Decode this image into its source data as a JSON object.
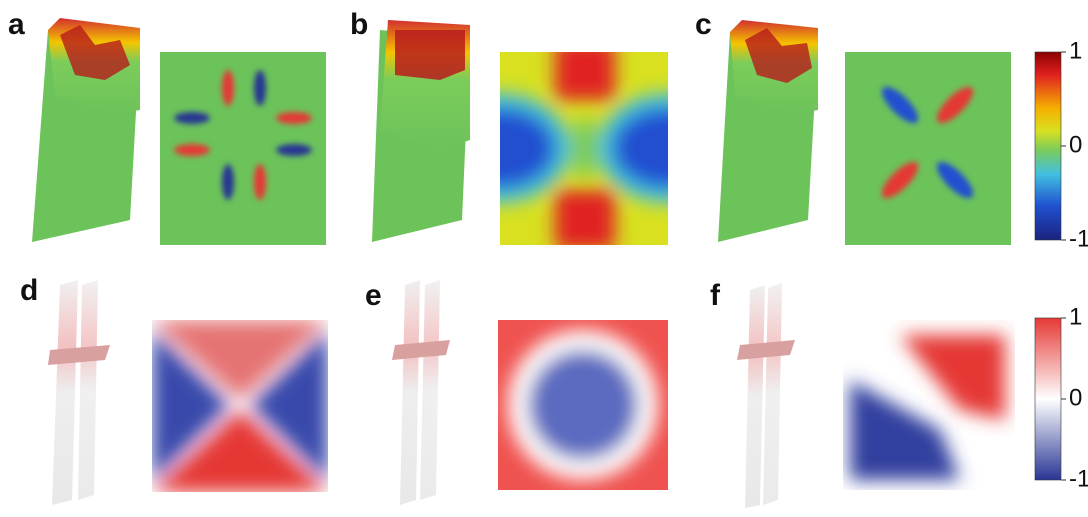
{
  "panels": [
    {
      "label": "a"
    },
    {
      "label": "b"
    },
    {
      "label": "c"
    },
    {
      "label": "d"
    },
    {
      "label": "e"
    },
    {
      "label": "f"
    }
  ],
  "colorbars": [
    {
      "ticks": [
        1,
        0,
        -1
      ]
    },
    {
      "ticks": [
        1,
        0,
        -1
      ]
    }
  ]
}
